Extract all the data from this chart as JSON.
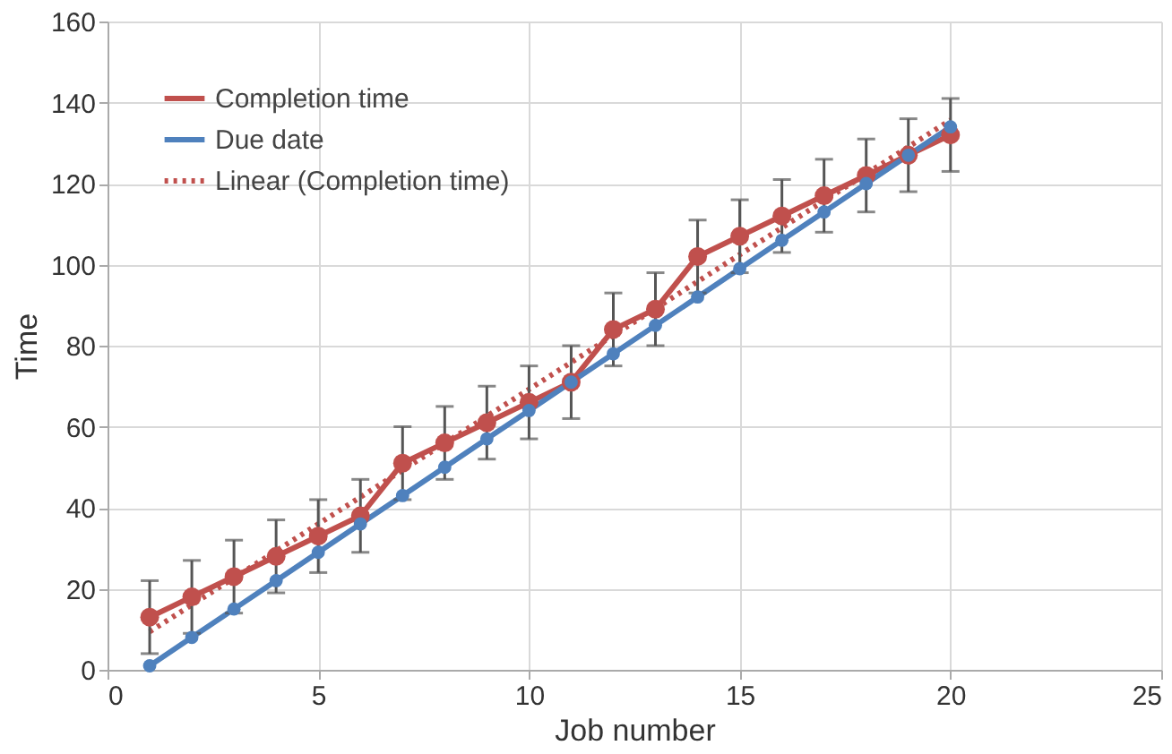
{
  "chart_data": {
    "type": "line",
    "xlabel": "Job number",
    "ylabel": "Time",
    "x": [
      1,
      2,
      3,
      4,
      5,
      6,
      7,
      8,
      9,
      10,
      11,
      12,
      13,
      14,
      15,
      16,
      17,
      18,
      19,
      20
    ],
    "series": [
      {
        "name": "Completion time",
        "color": "#c0504d",
        "values": [
          13,
          18,
          23,
          28,
          33,
          38,
          51,
          56,
          61,
          66,
          71,
          84,
          89,
          102,
          107,
          112,
          117,
          122,
          127,
          132
        ],
        "errors": [
          9,
          9,
          9,
          9,
          9,
          9,
          9,
          9,
          9,
          9,
          9,
          9,
          9,
          9,
          9,
          9,
          9,
          9,
          9,
          9
        ],
        "marker": "circle",
        "line_style": "solid"
      },
      {
        "name": "Due date",
        "color": "#4f81bd",
        "values": [
          1,
          8,
          15,
          22,
          29,
          36,
          43,
          50,
          57,
          64,
          71,
          78,
          85,
          92,
          99,
          106,
          113,
          120,
          127,
          134
        ],
        "marker": "circle",
        "line_style": "solid"
      },
      {
        "name": "Linear (Completion time)",
        "color": "#c0504d",
        "x": [
          1,
          20
        ],
        "values": [
          9.4,
          135.7
        ],
        "marker": "none",
        "line_style": "dotted"
      }
    ],
    "xlim": [
      0,
      25
    ],
    "xticks": [
      0,
      5,
      10,
      15,
      20,
      25
    ],
    "ylim": [
      0,
      160
    ],
    "yticks": [
      0,
      20,
      40,
      60,
      80,
      100,
      120,
      140,
      160
    ],
    "grid": true,
    "legend": "top left"
  }
}
